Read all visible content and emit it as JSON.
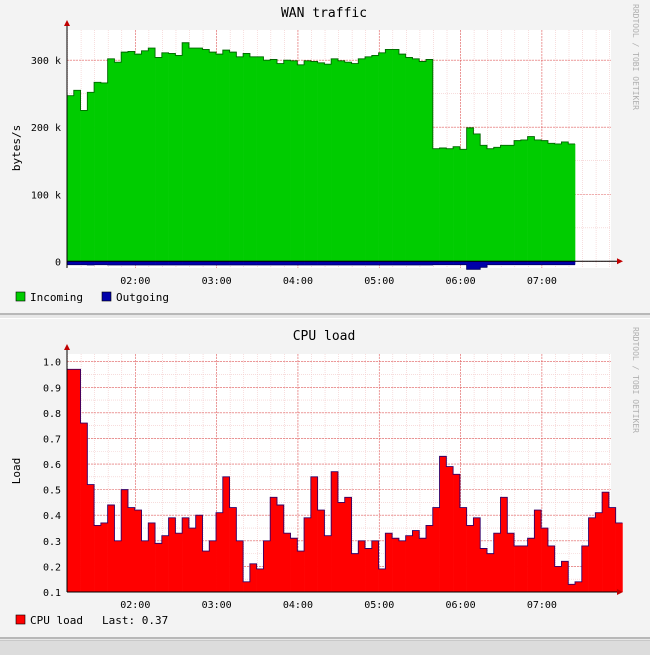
{
  "charts": [
    {
      "id": "wan",
      "title": "WAN traffic",
      "ylabel": "bytes/s",
      "watermark": "RRDTOOL / TOBI OETIKER",
      "legend": [
        {
          "label": "Incoming",
          "color": "#00cc00"
        },
        {
          "label": "Outgoing",
          "color": "#0000aa"
        }
      ]
    },
    {
      "id": "cpu",
      "title": "CPU load",
      "ylabel": "Load",
      "watermark": "RRDTOOL / TOBI OETIKER",
      "legend": [
        {
          "label": "CPU load",
          "color": "#ff0000"
        }
      ],
      "last_text": "Last: 0.37"
    }
  ],
  "chart_data": [
    {
      "type": "area",
      "title": "WAN traffic",
      "ylabel": "bytes/s",
      "xlabel": "",
      "x_ticks": [
        "02:00",
        "03:00",
        "04:00",
        "05:00",
        "06:00",
        "07:00"
      ],
      "y_ticks": [
        {
          "value": 0,
          "label": "0"
        },
        {
          "value": 100000,
          "label": "100 k"
        },
        {
          "value": 200000,
          "label": "200 k"
        },
        {
          "value": 300000,
          "label": "300 k"
        }
      ],
      "ylim": [
        -10000,
        345000
      ],
      "xlim": [
        1.16,
        7.85
      ],
      "step_hours": 0.0833,
      "grid": true,
      "legend_position": "bottom-left",
      "series": [
        {
          "name": "Incoming",
          "color": "#00cc00",
          "start": 1.16,
          "values": [
            247000,
            255000,
            225000,
            252000,
            267000,
            266000,
            302000,
            297000,
            312000,
            313000,
            309000,
            314000,
            318000,
            304000,
            311000,
            310000,
            307000,
            326000,
            318000,
            318000,
            316000,
            312000,
            309000,
            315000,
            312000,
            305000,
            310000,
            305000,
            305000,
            300000,
            301000,
            295000,
            300000,
            299000,
            293000,
            299000,
            298000,
            296000,
            294000,
            302000,
            299000,
            297000,
            295000,
            302000,
            305000,
            307000,
            311000,
            316000,
            316000,
            309000,
            304000,
            302000,
            298000,
            301000,
            168000,
            169000,
            168000,
            171000,
            167000,
            199000,
            190000,
            173000,
            168000,
            170000,
            173000,
            173000,
            180000,
            181000,
            186000,
            181000,
            180000,
            176000,
            175000,
            178000,
            175000
          ]
        },
        {
          "name": "Outgoing",
          "color": "#0000aa",
          "start": 1.16,
          "values": [
            -5000,
            -5000,
            -5000,
            -5500,
            -5000,
            -5000,
            -5500,
            -5500,
            -5500,
            -5500,
            -5500,
            -5500,
            -5500,
            -5500,
            -5500,
            -5500,
            -5500,
            -5500,
            -5500,
            -5500,
            -5500,
            -5500,
            -5500,
            -5500,
            -5500,
            -5500,
            -5500,
            -5500,
            -5500,
            -5500,
            -5500,
            -5500,
            -5500,
            -5500,
            -5500,
            -5500,
            -5500,
            -5500,
            -5500,
            -5500,
            -5500,
            -5500,
            -5500,
            -5500,
            -5500,
            -5500,
            -5500,
            -5500,
            -5500,
            -5500,
            -5500,
            -5500,
            -5500,
            -5500,
            -5000,
            -5000,
            -5000,
            -5000,
            -5000,
            -12000,
            -12000,
            -9000,
            -5000,
            -5000,
            -5000,
            -5000,
            -5000,
            -5000,
            -5000,
            -5000,
            -5000,
            -5000,
            -5000,
            -5000,
            -5000
          ]
        }
      ]
    },
    {
      "type": "area",
      "title": "CPU load",
      "ylabel": "Load",
      "xlabel": "",
      "x_ticks": [
        "02:00",
        "03:00",
        "04:00",
        "05:00",
        "06:00",
        "07:00"
      ],
      "y_ticks": [
        {
          "value": 0.1,
          "label": "0.1"
        },
        {
          "value": 0.2,
          "label": "0.2"
        },
        {
          "value": 0.3,
          "label": "0.3"
        },
        {
          "value": 0.4,
          "label": "0.4"
        },
        {
          "value": 0.5,
          "label": "0.5"
        },
        {
          "value": 0.6,
          "label": "0.6"
        },
        {
          "value": 0.7,
          "label": "0.7"
        },
        {
          "value": 0.8,
          "label": "0.8"
        },
        {
          "value": 0.9,
          "label": "0.9"
        },
        {
          "value": 1.0,
          "label": "1.0"
        }
      ],
      "ylim": [
        0.1,
        1.03
      ],
      "xlim": [
        1.16,
        7.85
      ],
      "step_hours": 0.0833,
      "grid": true,
      "legend_position": "bottom-left",
      "series": [
        {
          "name": "CPU load",
          "color": "#ff0000",
          "start": 1.16,
          "values": [
            0.97,
            0.97,
            0.76,
            0.52,
            0.36,
            0.37,
            0.44,
            0.3,
            0.5,
            0.43,
            0.42,
            0.3,
            0.37,
            0.29,
            0.32,
            0.39,
            0.33,
            0.39,
            0.35,
            0.4,
            0.26,
            0.3,
            0.41,
            0.55,
            0.43,
            0.3,
            0.14,
            0.21,
            0.19,
            0.3,
            0.47,
            0.44,
            0.33,
            0.31,
            0.26,
            0.39,
            0.55,
            0.42,
            0.32,
            0.57,
            0.45,
            0.47,
            0.25,
            0.3,
            0.27,
            0.3,
            0.19,
            0.33,
            0.31,
            0.3,
            0.32,
            0.34,
            0.31,
            0.36,
            0.43,
            0.63,
            0.59,
            0.56,
            0.43,
            0.36,
            0.39,
            0.27,
            0.25,
            0.33,
            0.47,
            0.33,
            0.28,
            0.28,
            0.31,
            0.42,
            0.35,
            0.28,
            0.2,
            0.22,
            0.13,
            0.14,
            0.28,
            0.39,
            0.41,
            0.49,
            0.43,
            0.37
          ]
        }
      ]
    }
  ]
}
